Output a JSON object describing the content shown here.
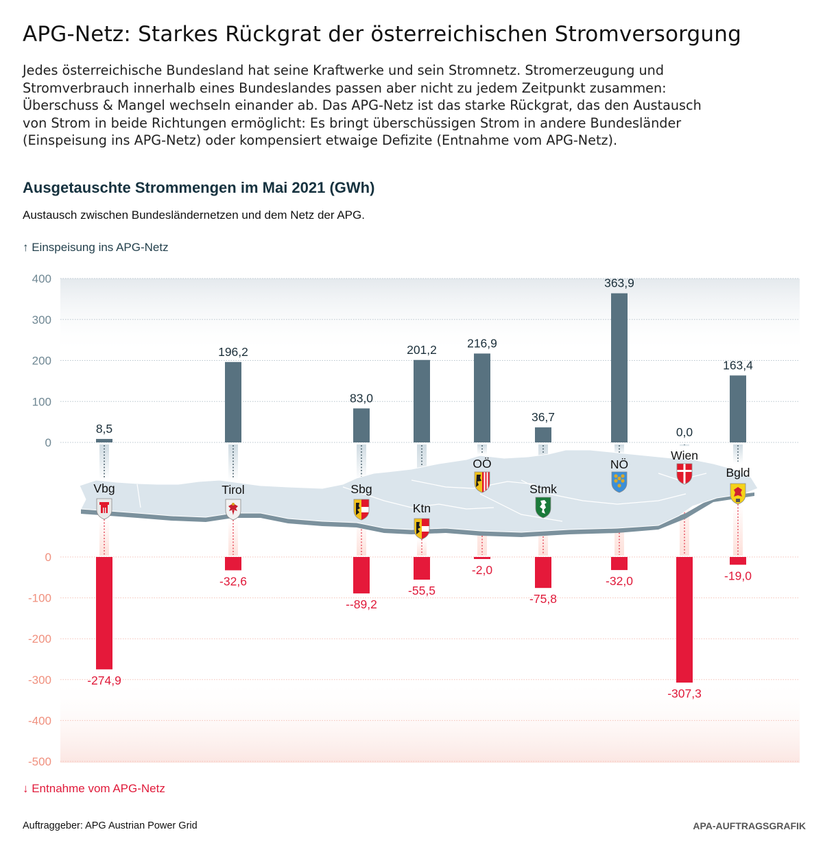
{
  "header": {
    "title": "APG-Netz: Starkes Rückgrat der österreichischen Stromversorgung",
    "intro_lines": [
      "Jedes österreichische Bundesland hat seine Kraftwerke und sein Stromnetz. Stromerzeugung und",
      "Stromverbrauch innerhalb eines Bundeslandes passen aber nicht zu jedem Zeitpunkt zusammen:",
      "Überschuss & Mangel wechseln einander ab. Das APG-Netz ist das starke Rückgrat, das den Austausch",
      "von Strom in beide Richtungen ermöglicht: Es bringt überschüssigen Strom in andere Bundesländer",
      "(Einspeisung ins APG-Netz) oder kompensiert etwaige Defizite (Entnahme vom APG-Netz)."
    ]
  },
  "chart_data": {
    "type": "bar",
    "title": "Ausgetauschte Strommengen im Mai 2021 (GWh)",
    "subtitle": "Austausch zwischen Bundesländernetzen und dem Netz der APG.",
    "legend_up": "↑ Einspeisung ins APG-Netz",
    "legend_down": "↓ Entnahme vom APG-Netz",
    "xlabel": "",
    "ylabel": "GWh",
    "categories": [
      "Vbg",
      "Tirol",
      "Sbg",
      "Ktn",
      "OÖ",
      "Stmk",
      "NÖ",
      "Wien",
      "Bgld"
    ],
    "series": [
      {
        "name": "Einspeisung ins APG-Netz",
        "color": "#587280",
        "values": [
          8.5,
          196.2,
          83.0,
          201.2,
          216.9,
          36.7,
          363.9,
          0.0,
          163.4
        ],
        "labels": [
          "8,5",
          "196,2",
          "83,0",
          "201,2",
          "216,9",
          "36,7",
          "363,9",
          "0,0",
          "163,4"
        ]
      },
      {
        "name": "Entnahme vom APG-Netz",
        "color": "#e5193a",
        "values": [
          -274.9,
          -32.6,
          -89.2,
          -55.5,
          -2.0,
          -75.8,
          -32.0,
          -307.3,
          -19.0
        ],
        "labels": [
          "-274,9",
          "-32,6",
          "--89,2",
          "-55,5",
          "-2,0",
          "-75,8",
          "-32,0",
          "-307,3",
          "-19,0"
        ]
      }
    ],
    "ylim_top": [
      0,
      400
    ],
    "ylim_bottom": [
      -500,
      0
    ],
    "yticks_top": [
      400,
      300,
      200,
      100,
      0
    ],
    "yticks_bottom": [
      0,
      -100,
      -200,
      -300,
      -400,
      -500
    ],
    "grid": true,
    "legend": "top-left and bottom-left"
  },
  "states": [
    {
      "abbr": "Vbg",
      "arms": "vorarlberg-coat-of-arms"
    },
    {
      "abbr": "Tirol",
      "arms": "tirol-coat-of-arms"
    },
    {
      "abbr": "Sbg",
      "arms": "salzburg-coat-of-arms"
    },
    {
      "abbr": "Ktn",
      "arms": "kaernten-coat-of-arms"
    },
    {
      "abbr": "OÖ",
      "arms": "oberoesterreich-coat-of-arms"
    },
    {
      "abbr": "Stmk",
      "arms": "steiermark-coat-of-arms"
    },
    {
      "abbr": "NÖ",
      "arms": "niederoesterreich-coat-of-arms"
    },
    {
      "abbr": "Wien",
      "arms": "wien-coat-of-arms"
    },
    {
      "abbr": "Bgld",
      "arms": "burgenland-coat-of-arms"
    }
  ],
  "footer": {
    "client": "Auftraggeber: APG Austrian Power Grid",
    "credit": "APA-AUFTRAGSGRAFIK"
  }
}
